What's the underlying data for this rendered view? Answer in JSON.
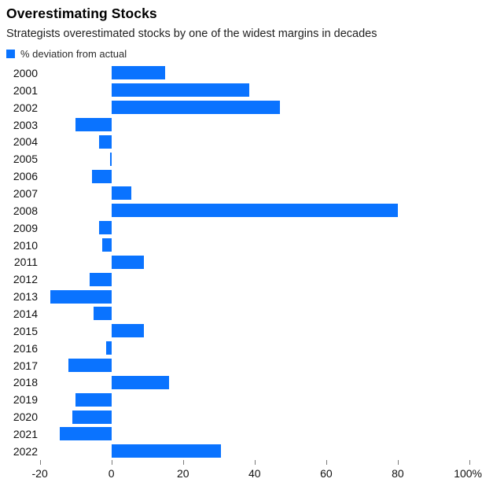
{
  "header": {
    "title": "Overestimating Stocks",
    "subtitle": "Strategists overestimated stocks by one of the widest margins in decades"
  },
  "legend": {
    "label": "% deviation from actual"
  },
  "colors": {
    "bar": "#0A73FF",
    "tick": "#7A7A7A"
  },
  "chart_data": {
    "type": "bar",
    "orientation": "horizontal",
    "title": "Overestimating Stocks",
    "subtitle": "Strategists overestimated stocks by one of the widest margins in decades",
    "series_name": "% deviation from actual",
    "unit": "%",
    "grid": false,
    "legend_position": "top-left",
    "categories": [
      "2000",
      "2001",
      "2002",
      "2003",
      "2004",
      "2005",
      "2006",
      "2007",
      "2008",
      "2009",
      "2010",
      "2011",
      "2012",
      "2013",
      "2014",
      "2015",
      "2016",
      "2017",
      "2018",
      "2019",
      "2020",
      "2021",
      "2022"
    ],
    "values": [
      15,
      38.5,
      47,
      -10,
      -3.5,
      -0.4,
      -5.5,
      5.5,
      80,
      -3.5,
      -2.5,
      9,
      -6,
      -17,
      -5,
      9,
      -1.5,
      -12,
      16,
      -10,
      -11,
      -14.5,
      30.5
    ],
    "xlim": [
      -20,
      100
    ],
    "x_ticks": [
      {
        "value": -20,
        "label": "-20"
      },
      {
        "value": 0,
        "label": "0"
      },
      {
        "value": 20,
        "label": "20"
      },
      {
        "value": 40,
        "label": "40"
      },
      {
        "value": 60,
        "label": "60"
      },
      {
        "value": 80,
        "label": "80"
      },
      {
        "value": 100,
        "label": "100%"
      }
    ]
  }
}
